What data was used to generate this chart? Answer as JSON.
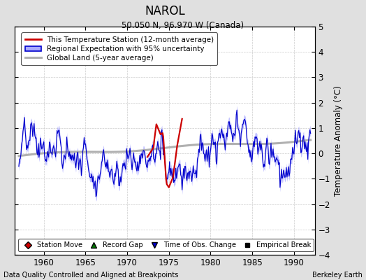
{
  "title": "NAROL",
  "subtitle": "50.050 N, 96.970 W (Canada)",
  "ylabel": "Temperature Anomaly (°C)",
  "footer_left": "Data Quality Controlled and Aligned at Breakpoints",
  "footer_right": "Berkeley Earth",
  "xlim": [
    1956.5,
    1992.5
  ],
  "ylim": [
    -4,
    5
  ],
  "yticks": [
    -4,
    -3,
    -2,
    -1,
    0,
    1,
    2,
    3,
    4,
    5
  ],
  "xticks": [
    1960,
    1965,
    1970,
    1975,
    1980,
    1985,
    1990
  ],
  "bg_color": "#e0e0e0",
  "plot_bg_color": "#ffffff",
  "regional_color": "#0000cc",
  "regional_fill_color": "#aaaaff",
  "station_color": "#cc0000",
  "global_color": "#b0b0b0",
  "legend_items": [
    "This Temperature Station (12-month average)",
    "Regional Expectation with 95% uncertainty",
    "Global Land (5-year average)"
  ],
  "marker_legend": [
    {
      "marker": "D",
      "color": "#cc0000",
      "label": "Station Move"
    },
    {
      "marker": "^",
      "color": "#007700",
      "label": "Record Gap"
    },
    {
      "marker": "v",
      "color": "#0000cc",
      "label": "Time of Obs. Change"
    },
    {
      "marker": "s",
      "color": "#000000",
      "label": "Empirical Break"
    }
  ]
}
